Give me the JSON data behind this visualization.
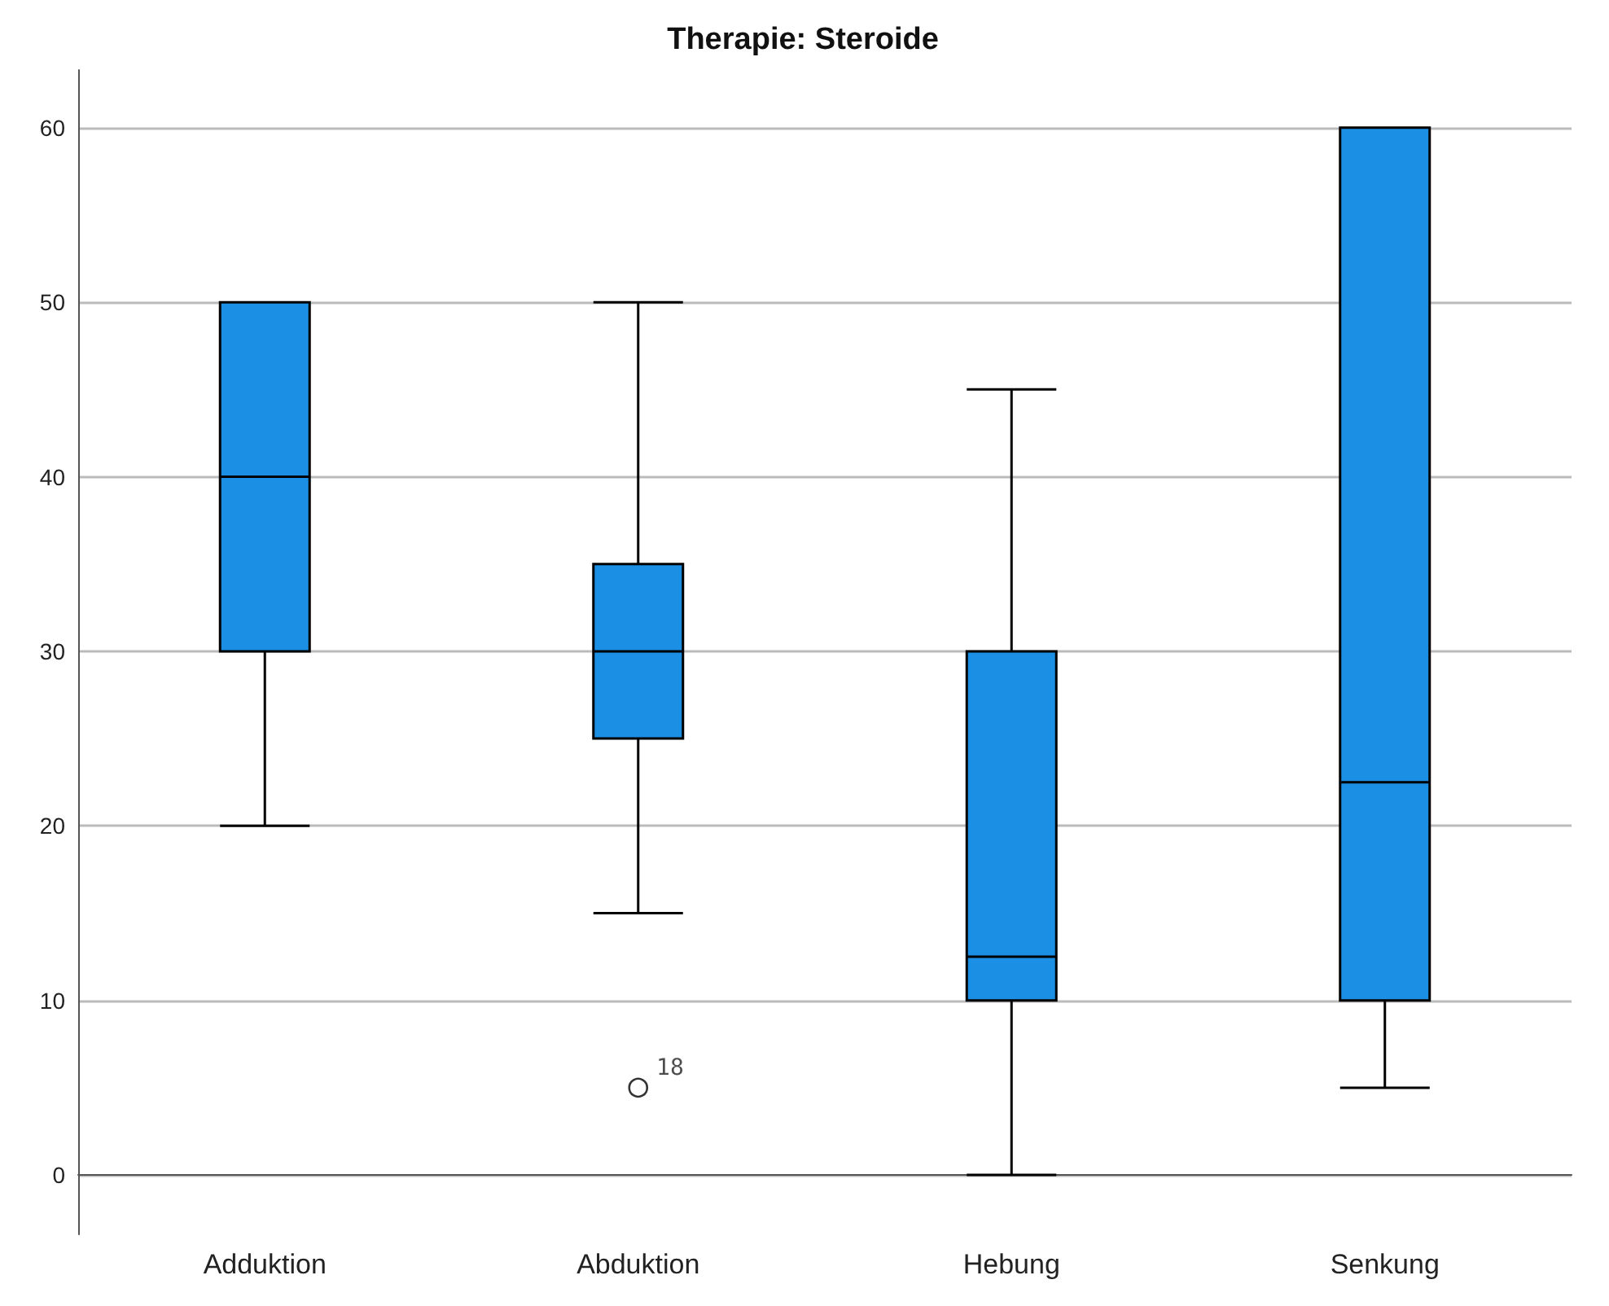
{
  "chart_data": {
    "type": "box",
    "title": "Therapie: Steroide",
    "categories": [
      "Adduktion",
      "Abduktion",
      "Hebung",
      "Senkung"
    ],
    "color": "#1a8fe3",
    "boxes": [
      {
        "low": 20,
        "q1": 30,
        "median": 40,
        "q3": 50,
        "high": 50
      },
      {
        "low": 15,
        "q1": 25,
        "median": 30,
        "q3": 35,
        "high": 50,
        "outliers": [
          5
        ]
      },
      {
        "low": 0,
        "q1": 10,
        "median": 12.5,
        "q3": 30,
        "high": 45
      },
      {
        "low": 5,
        "q1": 10,
        "median": 22.5,
        "q3": 60,
        "high": 60
      }
    ],
    "annotations": [
      "18"
    ],
    "ylim": [
      -3.4,
      63.3
    ],
    "yticks": [
      0,
      10,
      20,
      30,
      40,
      50,
      60
    ],
    "grid": "y",
    "marker": "circle"
  }
}
